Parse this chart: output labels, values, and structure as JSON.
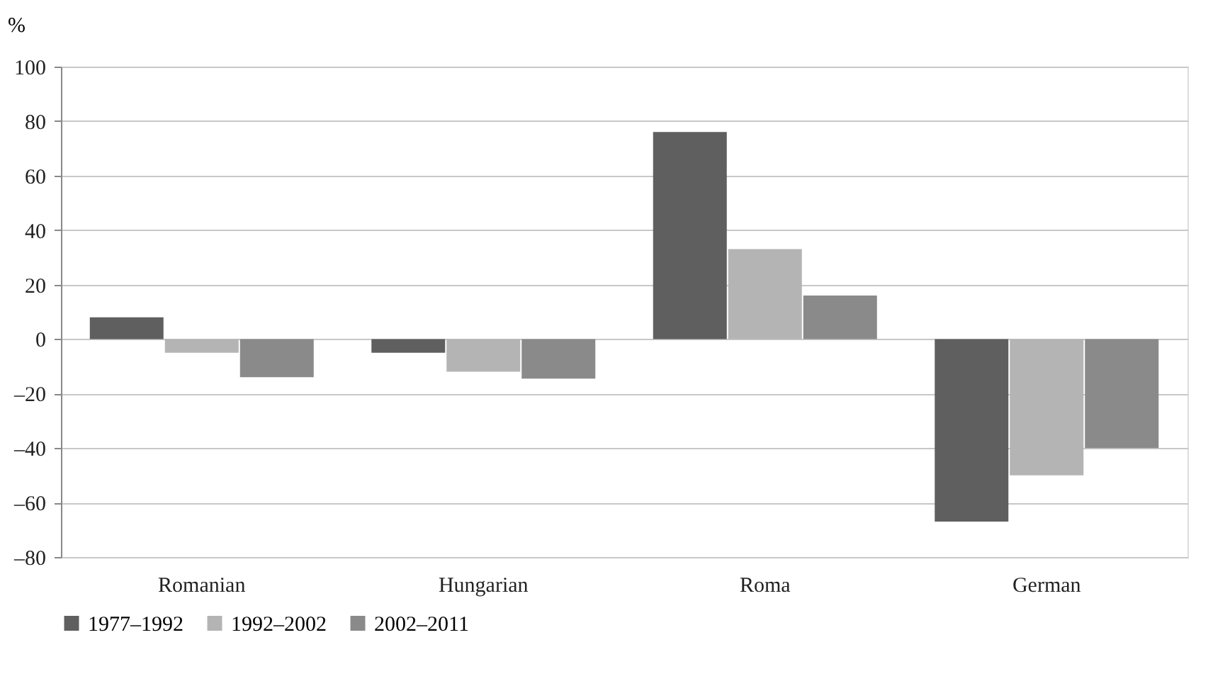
{
  "chart_data": {
    "type": "bar",
    "ylabel": "%",
    "categories": [
      "Romanian",
      "Hungarian",
      "Roma",
      "German"
    ],
    "series": [
      {
        "name": "1977–1992",
        "color": "#5f5f5f",
        "values": [
          8,
          -5,
          76,
          -67
        ]
      },
      {
        "name": "1992–2002",
        "color": "#b4b4b4",
        "values": [
          -5,
          -12,
          33,
          -50
        ]
      },
      {
        "name": "2002–2011",
        "color": "#8a8a8a",
        "values": [
          -14,
          -14.5,
          16,
          -40
        ]
      }
    ],
    "ylim": [
      -80,
      100
    ],
    "yticks": [
      {
        "value": -80,
        "label": "–80"
      },
      {
        "value": -60,
        "label": "–60"
      },
      {
        "value": -40,
        "label": "–40"
      },
      {
        "value": -20,
        "label": "–20"
      },
      0,
      20,
      40,
      60,
      80,
      100
    ],
    "grid": "y",
    "legend": "bottom"
  }
}
